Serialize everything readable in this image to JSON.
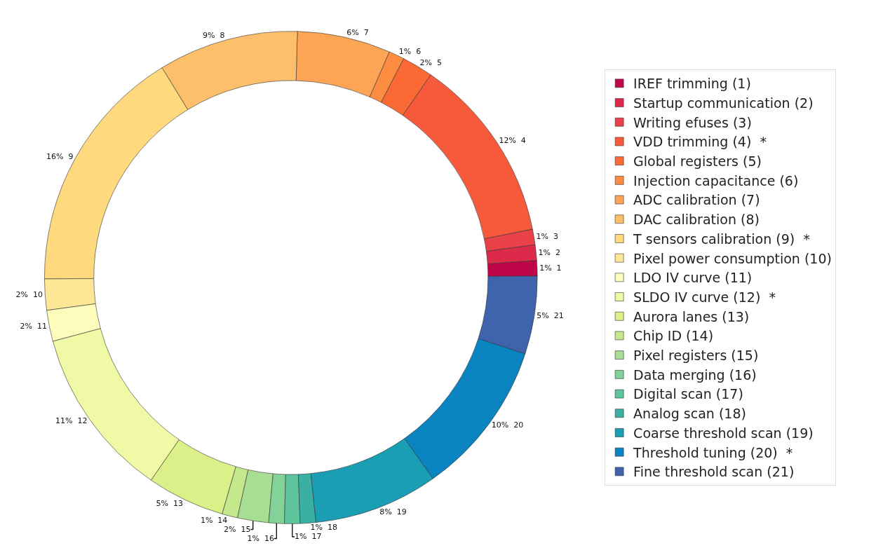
{
  "chart_data": {
    "type": "donut",
    "categories": [
      "IREF trimming (1)",
      "Startup communication (2)",
      "Writing efuses (3)",
      "VDD trimming (4)  *",
      "Global registers (5)",
      "Injection capacitance (6)",
      "ADC calibration (7)",
      "DAC calibration (8)",
      "T sensors calibration (9)  *",
      "Pixel power consumption (10)",
      "LDO IV curve (11)",
      "SLDO IV curve (12)  *",
      "Aurora lanes (13)",
      "Chip ID (14)",
      "Pixel registers (15)",
      "Data merging (16)",
      "Digital scan (17)",
      "Analog scan (18)",
      "Coarse threshold scan (19)",
      "Threshold tuning (20)  *",
      "Fine threshold scan (21)"
    ],
    "values": [
      1,
      1,
      1,
      12,
      2,
      1,
      6,
      9,
      16,
      2,
      2,
      11,
      5,
      1,
      2,
      1,
      1,
      1,
      8,
      10,
      5
    ],
    "value_labels": [
      "1%  1",
      "1%  2",
      "1%  3",
      "12%  4",
      "2%  5",
      "1%  6",
      "6%  7",
      "9%  8",
      "16%  9",
      "2%  10",
      "2%  11",
      "11%  12",
      "5%  13",
      "1%  14",
      "2%  15",
      "1%  16",
      "1%  17",
      "1%  18",
      "8%  19",
      "10%  20",
      "5%  21"
    ],
    "colors": [
      "#c0064a",
      "#dc2a4a",
      "#e8414a",
      "#f65a3a",
      "#fb6a35",
      "#fd8c40",
      "#fda555",
      "#fdbf6a",
      "#fed97e",
      "#fee898",
      "#fefcbc",
      "#f0f9a6",
      "#dcf08a",
      "#c4e88c",
      "#a8dd94",
      "#82d29a",
      "#5ec49c",
      "#3aafa4",
      "#1a9eb4",
      "#0a84c0",
      "#3f63ad"
    ],
    "legend": "right"
  }
}
